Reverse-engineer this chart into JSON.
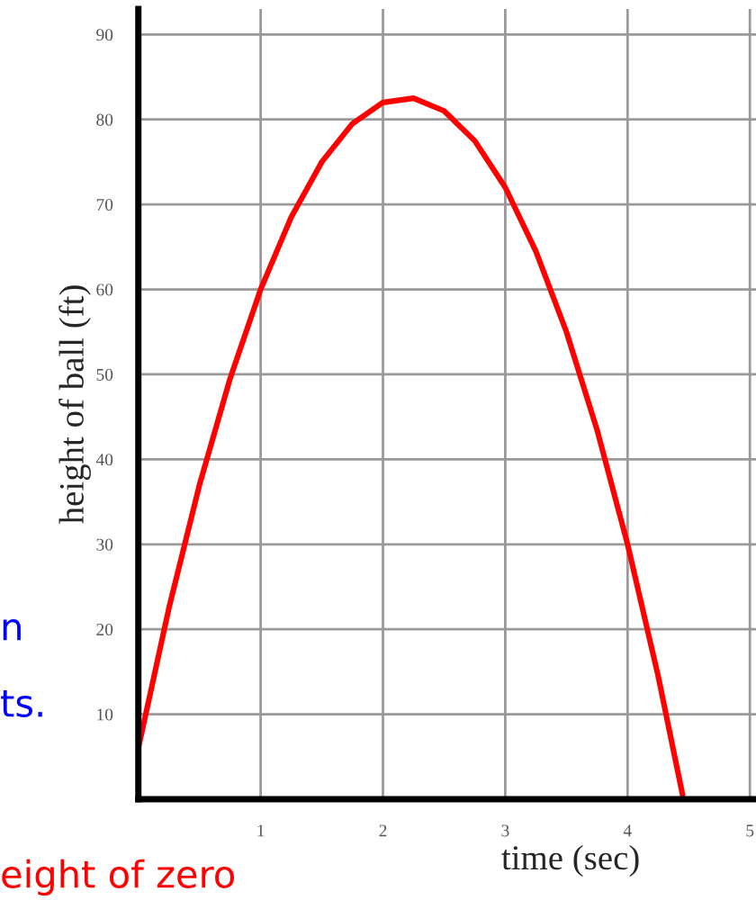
{
  "chart_data": {
    "type": "line",
    "xlabel": "time (sec)",
    "ylabel": "height of ball (ft)",
    "x": [
      0,
      0.25,
      0.5,
      0.75,
      1,
      1.25,
      1.5,
      1.75,
      2,
      2.25,
      2.5,
      2.75,
      3,
      3.25,
      3.5,
      3.75,
      4,
      4.25,
      4.45
    ],
    "series": [
      {
        "color": "#ff0000",
        "values": [
          6,
          22.5,
          37,
          49.5,
          60,
          68.5,
          75,
          79.5,
          82,
          82.5,
          81,
          77.5,
          72,
          64.5,
          55,
          43.5,
          30,
          14.5,
          0.5
        ]
      }
    ],
    "xlim": [
      0,
      5.05
    ],
    "ylim": [
      0,
      93
    ],
    "xticks": [
      1,
      2,
      3,
      4,
      5
    ],
    "yticks": [
      10,
      20,
      30,
      40,
      50,
      60,
      70,
      80,
      90
    ],
    "grid": true,
    "marker": "none",
    "line_style": "solid",
    "annotations": [
      "n",
      "ts.",
      "eight of zero"
    ]
  }
}
